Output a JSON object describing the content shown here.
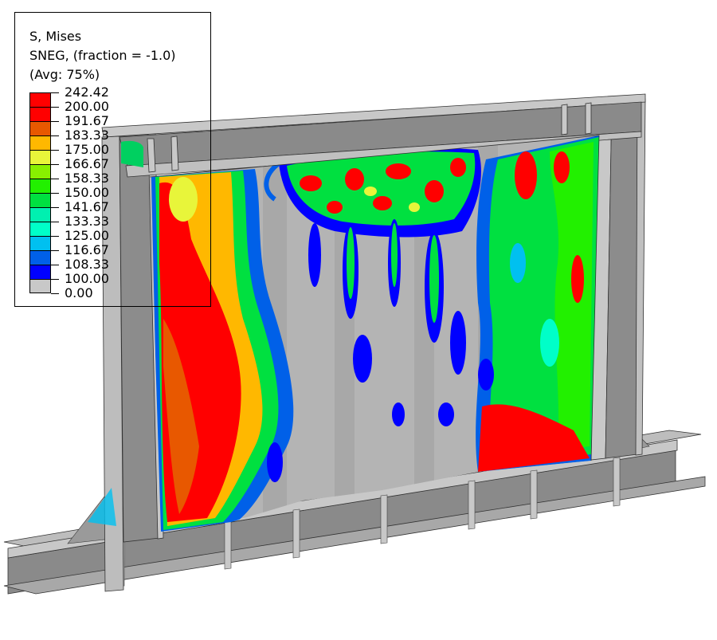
{
  "legend": {
    "title_lines": [
      "S, Mises",
      "SNEG, (fraction = -1.0)",
      "(Avg: 75%)"
    ],
    "tick_labels": [
      "242.42",
      "200.00",
      "191.67",
      "183.33",
      "175.00",
      "166.67",
      "158.33",
      "150.00",
      "141.67",
      "133.33",
      "125.00",
      "116.67",
      "108.33",
      "100.00",
      "0.00"
    ],
    "band_colors": [
      "#ff0000",
      "#ff0000",
      "#e85800",
      "#ffb800",
      "#e8f53a",
      "#88f000",
      "#22f000",
      "#00e040",
      "#00f0b0",
      "#00ffc8",
      "#00c0f0",
      "#0060e8",
      "#0000ff",
      "#c8c8c8"
    ]
  },
  "colors": {
    "steel": "#8c8c8c",
    "steel_light": "#c4c4c4",
    "steel_dark": "#6e6e6e"
  }
}
